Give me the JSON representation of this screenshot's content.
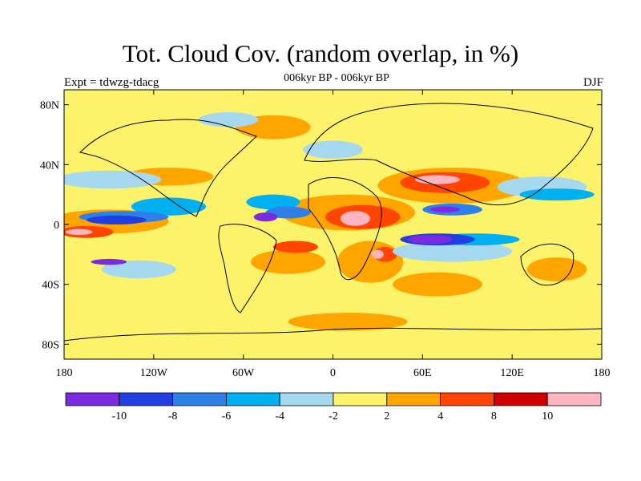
{
  "header": {
    "title": "Tot. Cloud Cov. (random overlap, in %)",
    "subtitle": "006kyr BP - 006kyr BP",
    "experiment": "Expt = tdwzg-tdacg",
    "season": "DJF"
  },
  "map": {
    "lon_range": [
      -180,
      180
    ],
    "lat_range": [
      -90,
      90
    ],
    "x_ticks": [
      {
        "value": -180,
        "label": "180"
      },
      {
        "value": -120,
        "label": "120W"
      },
      {
        "value": -60,
        "label": "60W"
      },
      {
        "value": 0,
        "label": "0"
      },
      {
        "value": 60,
        "label": "60E"
      },
      {
        "value": 120,
        "label": "120E"
      },
      {
        "value": 180,
        "label": "180"
      }
    ],
    "y_ticks": [
      {
        "value": 80,
        "label": "80N"
      },
      {
        "value": 40,
        "label": "40N"
      },
      {
        "value": 0,
        "label": "0"
      },
      {
        "value": -40,
        "label": "40S"
      },
      {
        "value": -80,
        "label": "80S"
      }
    ],
    "background_color": "#fdf36a",
    "regions": [
      {
        "color": "#ffa500",
        "lon": -150,
        "lat": 2,
        "rx": 40,
        "ry": 8
      },
      {
        "color": "#ffa500",
        "lon": 80,
        "lat": 26,
        "rx": 50,
        "ry": 12
      },
      {
        "color": "#ffa500",
        "lon": 10,
        "lat": 8,
        "rx": 45,
        "ry": 12
      },
      {
        "color": "#ffa500",
        "lon": 25,
        "lat": -25,
        "rx": 22,
        "ry": 14
      },
      {
        "color": "#ffa500",
        "lon": -30,
        "lat": -25,
        "rx": 25,
        "ry": 8
      },
      {
        "color": "#ffa500",
        "lon": -110,
        "lat": 32,
        "rx": 30,
        "ry": 6
      },
      {
        "color": "#ffa500",
        "lon": 150,
        "lat": -30,
        "rx": 20,
        "ry": 8
      },
      {
        "color": "#ffa500",
        "lon": 70,
        "lat": -40,
        "rx": 30,
        "ry": 8
      },
      {
        "color": "#ffa500",
        "lon": -40,
        "lat": 65,
        "rx": 25,
        "ry": 8
      },
      {
        "color": "#ffa500",
        "lon": 10,
        "lat": -65,
        "rx": 40,
        "ry": 6
      },
      {
        "color": "#ff4500",
        "lon": 75,
        "lat": 28,
        "rx": 30,
        "ry": 7
      },
      {
        "color": "#ff4500",
        "lon": 20,
        "lat": 5,
        "rx": 25,
        "ry": 8
      },
      {
        "color": "#ff4500",
        "lon": -165,
        "lat": -5,
        "rx": 18,
        "ry": 4
      },
      {
        "color": "#ff4500",
        "lon": 35,
        "lat": -20,
        "rx": 8,
        "ry": 5
      },
      {
        "color": "#ff4500",
        "lon": -25,
        "lat": -15,
        "rx": 15,
        "ry": 4
      },
      {
        "color": "#ffb6c1",
        "lon": 70,
        "lat": 30,
        "rx": 15,
        "ry": 3
      },
      {
        "color": "#ffb6c1",
        "lon": 15,
        "lat": 4,
        "rx": 10,
        "ry": 5
      },
      {
        "color": "#ffb6c1",
        "lon": -170,
        "lat": -5,
        "rx": 9,
        "ry": 2
      },
      {
        "color": "#ffb6c1",
        "lon": 30,
        "lat": -20,
        "rx": 4,
        "ry": 3
      },
      {
        "color": "#a6d8f0",
        "lon": -150,
        "lat": 30,
        "rx": 35,
        "ry": 6
      },
      {
        "color": "#a6d8f0",
        "lon": 140,
        "lat": 25,
        "rx": 30,
        "ry": 7
      },
      {
        "color": "#a6d8f0",
        "lon": -130,
        "lat": -30,
        "rx": 25,
        "ry": 6
      },
      {
        "color": "#a6d8f0",
        "lon": 0,
        "lat": 50,
        "rx": 20,
        "ry": 6
      },
      {
        "color": "#a6d8f0",
        "lon": -70,
        "lat": 70,
        "rx": 20,
        "ry": 5
      },
      {
        "color": "#a6d8f0",
        "lon": 80,
        "lat": -18,
        "rx": 40,
        "ry": 7
      },
      {
        "color": "#00b0f0",
        "lon": -110,
        "lat": 12,
        "rx": 25,
        "ry": 6
      },
      {
        "color": "#00b0f0",
        "lon": -40,
        "lat": 15,
        "rx": 18,
        "ry": 5
      },
      {
        "color": "#00b0f0",
        "lon": 150,
        "lat": 20,
        "rx": 25,
        "ry": 4
      },
      {
        "color": "#00b0f0",
        "lon": 95,
        "lat": -10,
        "rx": 30,
        "ry": 4
      },
      {
        "color": "#2f7fe8",
        "lon": -140,
        "lat": 5,
        "rx": 30,
        "ry": 4
      },
      {
        "color": "#2f7fe8",
        "lon": 80,
        "lat": 10,
        "rx": 20,
        "ry": 4
      },
      {
        "color": "#2f7fe8",
        "lon": -30,
        "lat": 8,
        "rx": 15,
        "ry": 4
      },
      {
        "color": "#1f3fe0",
        "lon": -145,
        "lat": 3,
        "rx": 20,
        "ry": 3
      },
      {
        "color": "#1f3fe0",
        "lon": 70,
        "lat": -10,
        "rx": 25,
        "ry": 4
      },
      {
        "color": "#7a2be0",
        "lon": -150,
        "lat": -25,
        "rx": 12,
        "ry": 2
      },
      {
        "color": "#7a2be0",
        "lon": 65,
        "lat": -10,
        "rx": 15,
        "ry": 3
      },
      {
        "color": "#7a2be0",
        "lon": -45,
        "lat": 5,
        "rx": 8,
        "ry": 3
      },
      {
        "color": "#7a2be0",
        "lon": 75,
        "lat": 10,
        "rx": 10,
        "ry": 2
      }
    ]
  },
  "colorbar": {
    "colors": [
      "#7a2be0",
      "#1f3fe0",
      "#2f7fe8",
      "#00b0f0",
      "#a6d8f0",
      "#fdf36a",
      "#ffa500",
      "#ff4500",
      "#d10000",
      "#ffb6c1"
    ],
    "labels": [
      "-10",
      "-8",
      "-6",
      "-4",
      "-2",
      "2",
      "4",
      "8",
      "10"
    ]
  }
}
